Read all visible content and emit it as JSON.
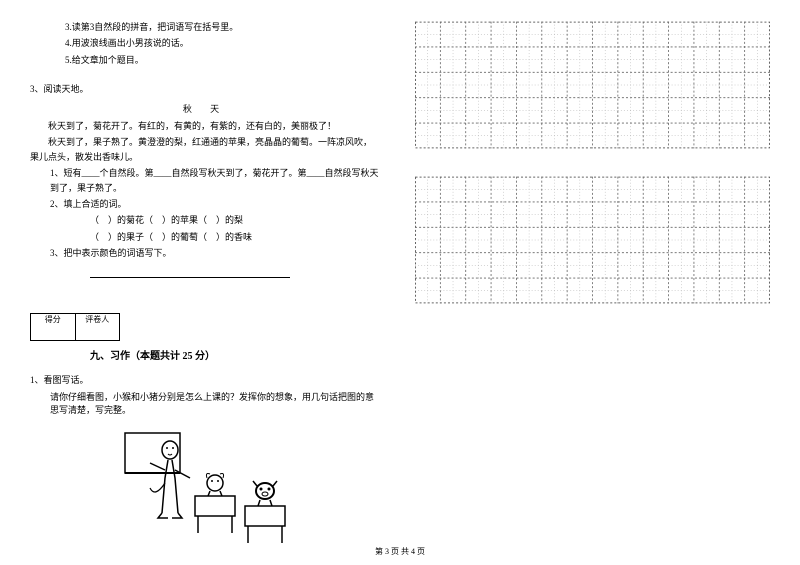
{
  "items": {
    "i3": "3.读第3自然段的拼音，把词语写在括号里。",
    "i4": "4.用波浪线画出小男孩说的话。",
    "i5": "5.给文章加个题目。"
  },
  "q3": {
    "header": "3、阅读天地。",
    "title": "秋  天",
    "p1": "秋天到了，菊花开了。有红的，有黄的，有紫的，还有白的，美丽极了！",
    "p2": "秋天到了，果子熟了。黄澄澄的梨，红通通的苹果，亮晶晶的葡萄。一阵凉风吹，果儿点头，散发出香味儿。",
    "sub1": "1、短有____个自然段。第____自然段写秋天到了，菊花开了。第____自然段写秋天到了，果子熟了。",
    "sub2": "2、填上合适的词。",
    "fill1": "（　）的菊花（　）的苹果（　）的梨",
    "fill2": "（　）的果子（　）的葡萄（　）的香味",
    "sub3": "3、把中表示颜色的词语写下。"
  },
  "score": {
    "c1": "得分",
    "c2": "评卷人"
  },
  "section9": "九、习作（本题共计 25 分）",
  "write": {
    "q": "1、看图写话。",
    "desc": "请你仔细看图，小猴和小猪分别是怎么上课的？发挥你的想象，用几句话把图的意思写清楚，写完整。"
  },
  "footer": "第 3 页 共 4 页",
  "grid": {
    "cols": 14,
    "rows": 5,
    "cell_size": 25,
    "border_color": "#666666",
    "tick_color": "#999999"
  }
}
